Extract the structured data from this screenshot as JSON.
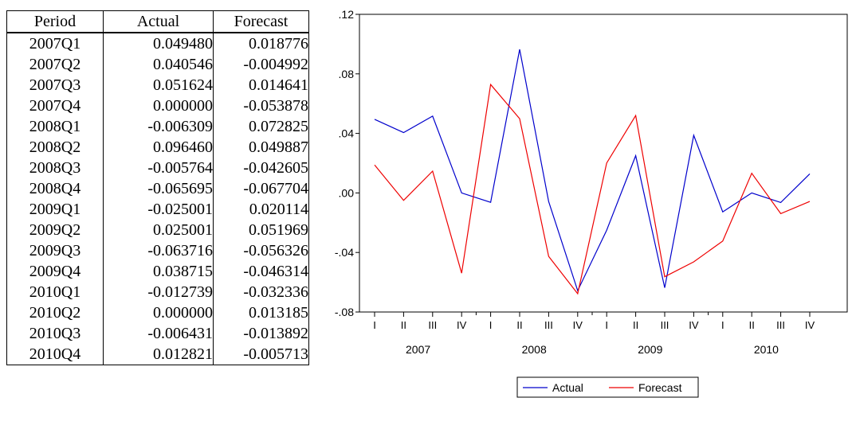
{
  "table": {
    "headers": [
      "Period",
      "Actual",
      "Forecast"
    ],
    "rows": [
      [
        "2007Q1",
        "0.049480",
        "0.018776"
      ],
      [
        "2007Q2",
        "0.040546",
        "-0.004992"
      ],
      [
        "2007Q3",
        "0.051624",
        "0.014641"
      ],
      [
        "2007Q4",
        "0.000000",
        "-0.053878"
      ],
      [
        "2008Q1",
        "-0.006309",
        "0.072825"
      ],
      [
        "2008Q2",
        "0.096460",
        "0.049887"
      ],
      [
        "2008Q3",
        "-0.005764",
        "-0.042605"
      ],
      [
        "2008Q4",
        "-0.065695",
        "-0.067704"
      ],
      [
        "2009Q1",
        "-0.025001",
        "0.020114"
      ],
      [
        "2009Q2",
        "0.025001",
        "0.051969"
      ],
      [
        "2009Q3",
        "-0.063716",
        "-0.056326"
      ],
      [
        "2009Q4",
        "0.038715",
        "-0.046314"
      ],
      [
        "2010Q1",
        "-0.012739",
        "-0.032336"
      ],
      [
        "2010Q2",
        "0.000000",
        "0.013185"
      ],
      [
        "2010Q3",
        "-0.006431",
        "-0.013892"
      ],
      [
        "2010Q4",
        "0.012821",
        "-0.005713"
      ]
    ]
  },
  "chart_data": {
    "type": "line",
    "title": "",
    "xlabel": "",
    "ylabel": "",
    "quarter_labels": [
      "I",
      "II",
      "III",
      "IV"
    ],
    "years": [
      "2007",
      "2008",
      "2009",
      "2010"
    ],
    "ylim": [
      -0.08,
      0.12
    ],
    "yticks": [
      -0.08,
      -0.04,
      0.0,
      0.04,
      0.08,
      0.12
    ],
    "ytick_labels": [
      "-.08",
      "-.04",
      ".00",
      ".04",
      ".08",
      ".12"
    ],
    "grid": false,
    "legend_position": "bottom-center",
    "series": [
      {
        "name": "Actual",
        "color": "#0000cc",
        "values": [
          0.04948,
          0.040546,
          0.051624,
          0.0,
          -0.006309,
          0.09646,
          -0.005764,
          -0.065695,
          -0.025001,
          0.025001,
          -0.063716,
          0.038715,
          -0.012739,
          0.0,
          -0.006431,
          0.012821
        ]
      },
      {
        "name": "Forecast",
        "color": "#ee0000",
        "values": [
          0.018776,
          -0.004992,
          0.014641,
          -0.053878,
          0.072825,
          0.049887,
          -0.042605,
          -0.067704,
          0.020114,
          0.051969,
          -0.056326,
          -0.046314,
          -0.032336,
          0.013185,
          -0.013892,
          -0.005713
        ]
      }
    ]
  }
}
